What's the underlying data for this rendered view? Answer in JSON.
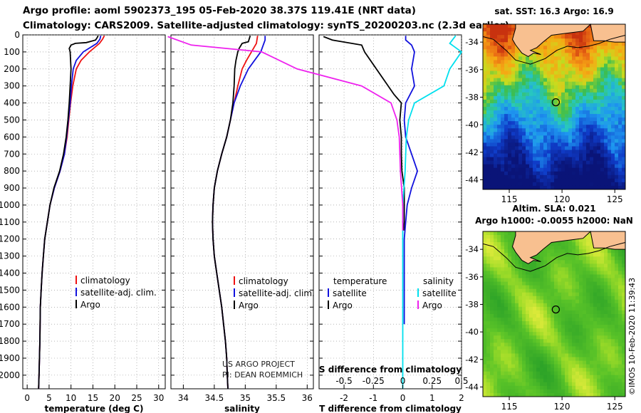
{
  "header": {
    "title_line1": "Argo profile: aoml 5902373_195 05-Feb-2020 38.37S 119.41E (NRT data)",
    "title_line2": "Climatology: CARS2009. Satellite-adjusted climatology: synTS_20200203.nc (2.3d earlier)"
  },
  "colors": {
    "climatology": "#ee1111",
    "satellite": "#1111dd",
    "argo": "#000000",
    "salinity_satellite": "#00e0ee",
    "salinity_argo": "#ee22ee",
    "land": "#f8c090"
  },
  "chart_data": [
    {
      "type": "line",
      "name": "temperature-profile",
      "xlabel": "temperature (deg C)",
      "ylabel": "depth",
      "xlim": [
        -1,
        31.5
      ],
      "ylim": [
        2080,
        0
      ],
      "x_ticks": [
        "0",
        "5",
        "10",
        "15",
        "20",
        "25",
        "30"
      ],
      "y_ticks": [
        "0",
        "100",
        "200",
        "300",
        "400",
        "500",
        "600",
        "700",
        "800",
        "900",
        "1000",
        "1100",
        "1200",
        "1300",
        "1400",
        "1500",
        "1600",
        "1700",
        "1800",
        "1900",
        "2000"
      ],
      "legend": [
        "climatology",
        "satellite-adj. clim.",
        "Argo"
      ],
      "series": [
        {
          "name": "climatology",
          "points": [
            [
              17.6,
              5
            ],
            [
              17.2,
              25
            ],
            [
              16.5,
              50
            ],
            [
              14.2,
              100
            ],
            [
              12.3,
              150
            ],
            [
              11.2,
              200
            ],
            [
              10.4,
              300
            ],
            [
              9.9,
              400
            ],
            [
              9.5,
              500
            ],
            [
              9.1,
              600
            ],
            [
              8.5,
              700
            ],
            [
              7.5,
              800
            ],
            [
              6.2,
              900
            ],
            [
              5.2,
              1000
            ],
            [
              4.6,
              1100
            ],
            [
              4.0,
              1200
            ],
            [
              3.7,
              1300
            ],
            [
              3.4,
              1400
            ],
            [
              3.2,
              1500
            ],
            [
              3.0,
              1600
            ],
            [
              2.9,
              1800
            ],
            [
              2.7,
              2000
            ],
            [
              2.6,
              2080
            ]
          ]
        },
        {
          "name": "satellite",
          "points": [
            [
              16.8,
              5
            ],
            [
              16.6,
              25
            ],
            [
              15.9,
              50
            ],
            [
              12.8,
              100
            ],
            [
              11.2,
              150
            ],
            [
              10.5,
              200
            ],
            [
              10.1,
              300
            ],
            [
              9.8,
              400
            ],
            [
              9.4,
              500
            ],
            [
              9.0,
              600
            ],
            [
              8.5,
              700
            ],
            [
              7.5,
              800
            ],
            [
              6.2,
              900
            ],
            [
              5.2,
              1000
            ],
            [
              4.6,
              1100
            ],
            [
              4.0,
              1200
            ],
            [
              3.7,
              1300
            ],
            [
              3.4,
              1400
            ],
            [
              3.2,
              1500
            ],
            [
              3.0,
              1600
            ],
            [
              2.9,
              1800
            ],
            [
              2.7,
              2000
            ],
            [
              2.6,
              2080
            ]
          ]
        },
        {
          "name": "Argo",
          "points": [
            [
              16.2,
              5
            ],
            [
              16.0,
              15
            ],
            [
              15.6,
              30
            ],
            [
              13.5,
              45
            ],
            [
              11.0,
              50
            ],
            [
              10.0,
              60
            ],
            [
              9.6,
              80
            ],
            [
              9.8,
              100
            ],
            [
              9.9,
              150
            ],
            [
              10.0,
              200
            ],
            [
              9.8,
              300
            ],
            [
              9.6,
              400
            ],
            [
              9.3,
              500
            ],
            [
              8.9,
              600
            ],
            [
              8.3,
              700
            ],
            [
              7.4,
              800
            ],
            [
              6.1,
              900
            ],
            [
              5.2,
              1000
            ],
            [
              4.6,
              1100
            ],
            [
              4.0,
              1200
            ],
            [
              3.7,
              1300
            ],
            [
              3.4,
              1400
            ],
            [
              3.2,
              1500
            ],
            [
              3.0,
              1600
            ],
            [
              2.9,
              1800
            ],
            [
              2.7,
              2000
            ],
            [
              2.6,
              2080
            ]
          ]
        }
      ]
    },
    {
      "type": "line",
      "name": "salinity-profile",
      "xlabel": "salinity",
      "ylabel": "depth",
      "xlim": [
        33.8,
        36.1
      ],
      "ylim": [
        2080,
        0
      ],
      "x_ticks": [
        "34",
        "34.5",
        "35",
        "35.5",
        "36"
      ],
      "legend": [
        "climatology",
        "satellite-adj. clim.",
        "Argo"
      ],
      "annotation_lines": [
        "US ARGO PROJECT",
        "PI: DEAN ROEMMICH"
      ],
      "series": [
        {
          "name": "climatology",
          "points": [
            [
              35.2,
              5
            ],
            [
              35.18,
              50
            ],
            [
              35.1,
              100
            ],
            [
              35.02,
              150
            ],
            [
              34.95,
              200
            ],
            [
              34.88,
              300
            ],
            [
              34.82,
              400
            ],
            [
              34.76,
              500
            ],
            [
              34.7,
              600
            ],
            [
              34.62,
              700
            ],
            [
              34.55,
              800
            ],
            [
              34.5,
              900
            ],
            [
              34.48,
              1000
            ],
            [
              34.47,
              1100
            ],
            [
              34.48,
              1200
            ],
            [
              34.5,
              1300
            ],
            [
              34.54,
              1400
            ],
            [
              34.58,
              1500
            ],
            [
              34.62,
              1600
            ],
            [
              34.65,
              1700
            ],
            [
              34.68,
              1800
            ],
            [
              34.7,
              1900
            ],
            [
              34.71,
              2000
            ],
            [
              34.72,
              2080
            ]
          ]
        },
        {
          "name": "satellite",
          "points": [
            [
              35.32,
              5
            ],
            [
              35.32,
              30
            ],
            [
              35.25,
              100
            ],
            [
              35.15,
              150
            ],
            [
              35.05,
              200
            ],
            [
              34.92,
              300
            ],
            [
              34.82,
              400
            ],
            [
              34.76,
              500
            ],
            [
              34.7,
              600
            ],
            [
              34.62,
              700
            ],
            [
              34.55,
              800
            ],
            [
              34.5,
              900
            ],
            [
              34.48,
              1000
            ],
            [
              34.47,
              1100
            ],
            [
              34.48,
              1200
            ],
            [
              34.5,
              1300
            ],
            [
              34.54,
              1400
            ],
            [
              34.58,
              1500
            ],
            [
              34.62,
              1600
            ],
            [
              34.65,
              1700
            ],
            [
              34.68,
              1800
            ],
            [
              34.7,
              1900
            ],
            [
              34.71,
              2000
            ],
            [
              34.72,
              2080
            ]
          ]
        },
        {
          "name": "Argo",
          "points": [
            [
              35.08,
              5
            ],
            [
              35.05,
              40
            ],
            [
              34.95,
              50
            ],
            [
              34.9,
              80
            ],
            [
              34.88,
              100
            ],
            [
              34.85,
              150
            ],
            [
              34.83,
              200
            ],
            [
              34.82,
              300
            ],
            [
              34.8,
              400
            ],
            [
              34.76,
              500
            ],
            [
              34.7,
              600
            ],
            [
              34.62,
              700
            ],
            [
              34.55,
              800
            ],
            [
              34.5,
              900
            ],
            [
              34.48,
              1000
            ],
            [
              34.47,
              1100
            ],
            [
              34.48,
              1200
            ],
            [
              34.5,
              1300
            ],
            [
              34.54,
              1400
            ],
            [
              34.58,
              1500
            ],
            [
              34.62,
              1600
            ],
            [
              34.65,
              1700
            ],
            [
              34.68,
              1800
            ],
            [
              34.7,
              1900
            ],
            [
              34.71,
              2000
            ],
            [
              34.72,
              2080
            ]
          ]
        }
      ]
    },
    {
      "type": "line",
      "name": "difference-profile",
      "xlabel": "T difference from climatology",
      "ylabel": "depth",
      "xlim": [
        -2.85,
        2.0
      ],
      "ylim": [
        2080,
        0
      ],
      "x_ticks": [
        "-2",
        "-1",
        "0",
        "1",
        "2"
      ],
      "top_label": "S difference from climatology",
      "s_ticks": [
        "-0.5",
        "-0.25",
        "0",
        "0.25",
        "0.5"
      ],
      "s_scale_x_per_unit": 4.0,
      "legend": {
        "temperature_title": "temperature",
        "salinity_title": "salinity",
        "satellite": "satellite",
        "argo": "Argo"
      },
      "series": [
        {
          "name": "T satellite",
          "points": [
            [
              0.1,
              5
            ],
            [
              0.1,
              30
            ],
            [
              0.3,
              60
            ],
            [
              0.4,
              100
            ],
            [
              0.3,
              200
            ],
            [
              0.4,
              300
            ],
            [
              0.1,
              400
            ],
            [
              0.05,
              500
            ],
            [
              0.1,
              600
            ],
            [
              0.3,
              700
            ],
            [
              0.5,
              800
            ],
            [
              0.3,
              900
            ],
            [
              0.15,
              1000
            ],
            [
              0.1,
              1100
            ],
            [
              0.05,
              1200
            ],
            [
              0.05,
              1400
            ],
            [
              0.05,
              1700
            ]
          ]
        },
        {
          "name": "T Argo",
          "points": [
            [
              -2.7,
              10
            ],
            [
              -2.4,
              30
            ],
            [
              -1.4,
              60
            ],
            [
              -1.3,
              100
            ],
            [
              -0.9,
              200
            ],
            [
              -0.3,
              350
            ],
            [
              -0.05,
              400
            ],
            [
              -0.1,
              500
            ],
            [
              -0.05,
              600
            ],
            [
              -0.05,
              700
            ],
            [
              -0.03,
              800
            ],
            [
              0.05,
              900
            ],
            [
              0.05,
              1000
            ],
            [
              0.05,
              1100
            ],
            [
              0.03,
              1150
            ]
          ]
        },
        {
          "name": "S satellite",
          "points": [
            [
              0.45,
              5
            ],
            [
              0.4,
              50
            ],
            [
              0.5,
              100
            ],
            [
              0.4,
              200
            ],
            [
              0.35,
              300
            ],
            [
              0.1,
              400
            ],
            [
              0.05,
              500
            ],
            [
              0.03,
              600
            ],
            [
              0.02,
              800
            ],
            [
              0.0,
              1000
            ],
            [
              0.0,
              1200
            ],
            [
              0.0,
              1400
            ],
            [
              0.0,
              1700
            ],
            [
              0.0,
              2080
            ]
          ]
        },
        {
          "name": "S Argo",
          "points": [
            [
              -2.0,
              10
            ],
            [
              -1.8,
              60
            ],
            [
              -1.2,
              100
            ],
            [
              -0.9,
              200
            ],
            [
              -0.35,
              300
            ],
            [
              -0.1,
              400
            ],
            [
              -0.05,
              500
            ],
            [
              -0.03,
              600
            ],
            [
              -0.02,
              800
            ],
            [
              0.0,
              1000
            ],
            [
              0.0,
              1150
            ]
          ]
        }
      ]
    },
    {
      "type": "heatmap",
      "name": "sst-map",
      "title": "sat. SST: 16.3 Argo: 16.9",
      "x_ticks": [
        "115",
        "120",
        "125"
      ],
      "y_ticks": [
        "-34",
        "-36",
        "-38",
        "-40",
        "-42",
        "-44"
      ],
      "xlim": [
        112.5,
        126
      ],
      "ylim": [
        -44.7,
        -32.7
      ],
      "argo_position": [
        119.41,
        -38.37
      ]
    },
    {
      "type": "heatmap",
      "name": "sla-map",
      "title_line1": "Altim. SLA: 0.021",
      "title_line2": "Argo h1000: -0.0055 h2000: NaN",
      "x_ticks": [
        "115",
        "120",
        "125"
      ],
      "y_ticks": [
        "-34",
        "-36",
        "-38",
        "-40",
        "-42",
        "-44"
      ],
      "xlim": [
        112.5,
        126
      ],
      "ylim": [
        -44.7,
        -32.7
      ],
      "argo_position": [
        119.41,
        -38.37
      ],
      "credit": "©IMOS 10-Feb-2020 11:39:43"
    }
  ]
}
